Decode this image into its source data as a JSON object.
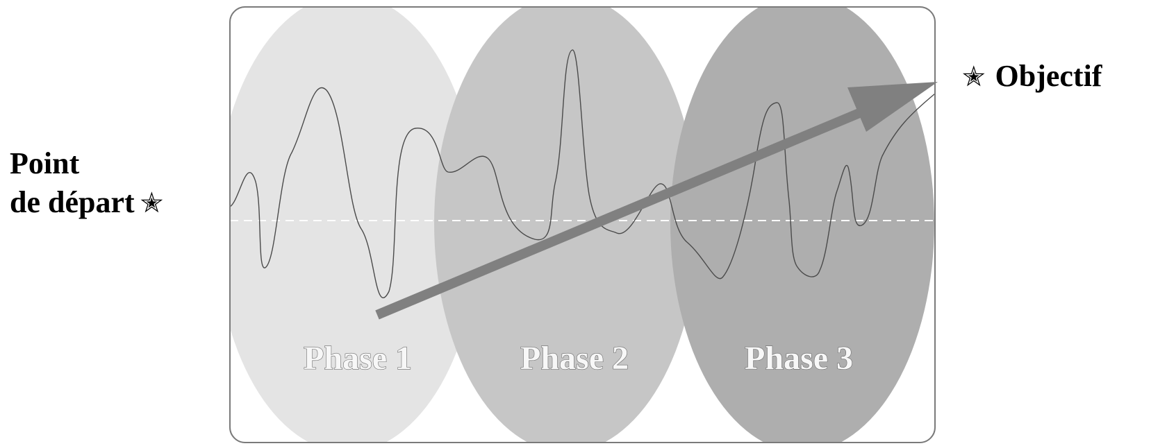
{
  "diagram": {
    "start_label_line1": "Point",
    "start_label_line2": "de départ",
    "goal_label": "Objectif",
    "star_symbol": "✭",
    "phases": [
      {
        "label": "Phase 1",
        "fill": "#e4e4e4"
      },
      {
        "label": "Phase 2",
        "fill": "#c6c6c6"
      },
      {
        "label": "Phase 3",
        "fill": "#aeaeae"
      }
    ],
    "frame_color": "#7a7a7a",
    "arrow_color": "#808080",
    "wave_color": "#4a4a4a",
    "baseline_color": "#ffffff"
  }
}
